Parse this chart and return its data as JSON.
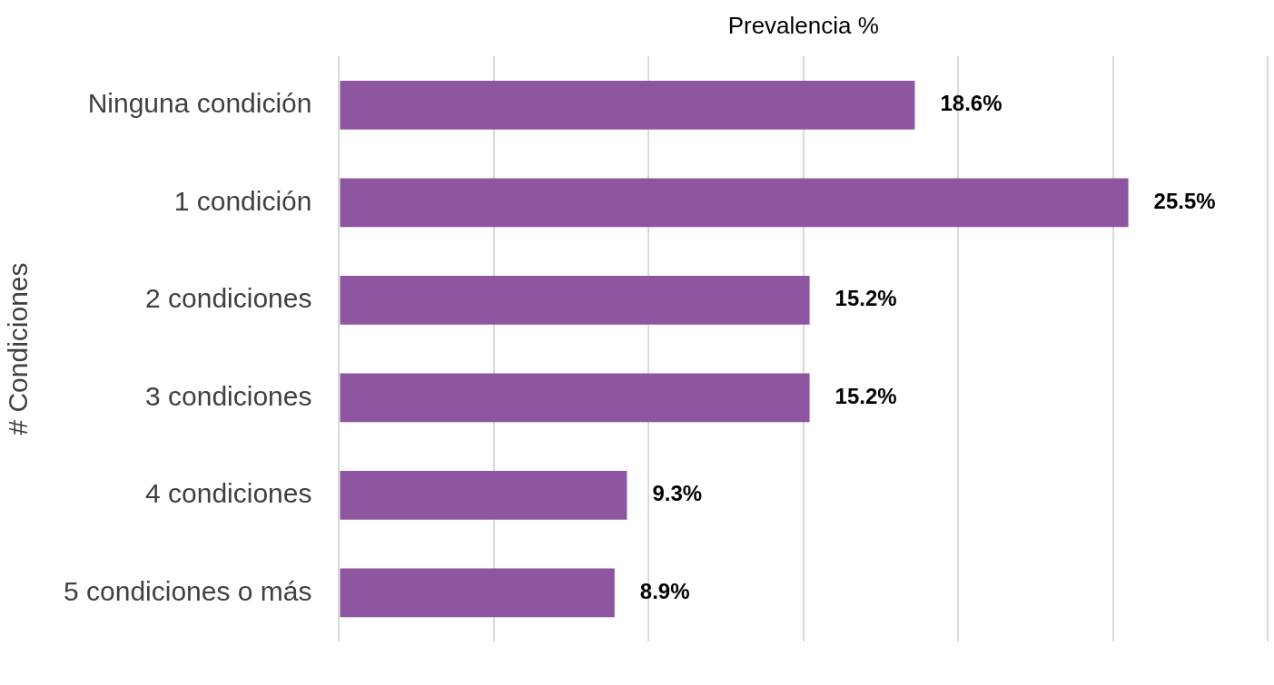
{
  "chart_data": {
    "type": "bar",
    "orientation": "horizontal",
    "title": "Prevalencia %",
    "ylabel": "# Condiciones",
    "categories": [
      "Ninguna condición",
      "1 condición",
      "2 condiciones",
      "3 condiciones",
      "4 condiciones",
      "5 condiciones o más"
    ],
    "values": [
      18.6,
      25.5,
      15.2,
      15.2,
      9.3,
      8.9
    ],
    "value_labels": [
      "18.6%",
      "25.5%",
      "15.2%",
      "15.2%",
      "9.3%",
      "8.9%"
    ],
    "color": "#8e55a0",
    "xlim": [
      0,
      30
    ],
    "xticks": [
      {
        "value": 0,
        "label": null
      },
      {
        "value": 5,
        "label": null
      },
      {
        "value": 10,
        "label": null
      },
      {
        "value": 15,
        "label": null
      },
      {
        "value": 20,
        "label": null
      },
      {
        "value": 25,
        "label": null
      },
      {
        "value": 30,
        "label": null
      }
    ],
    "grid": "x",
    "tick_labels": "y",
    "legend": false
  }
}
